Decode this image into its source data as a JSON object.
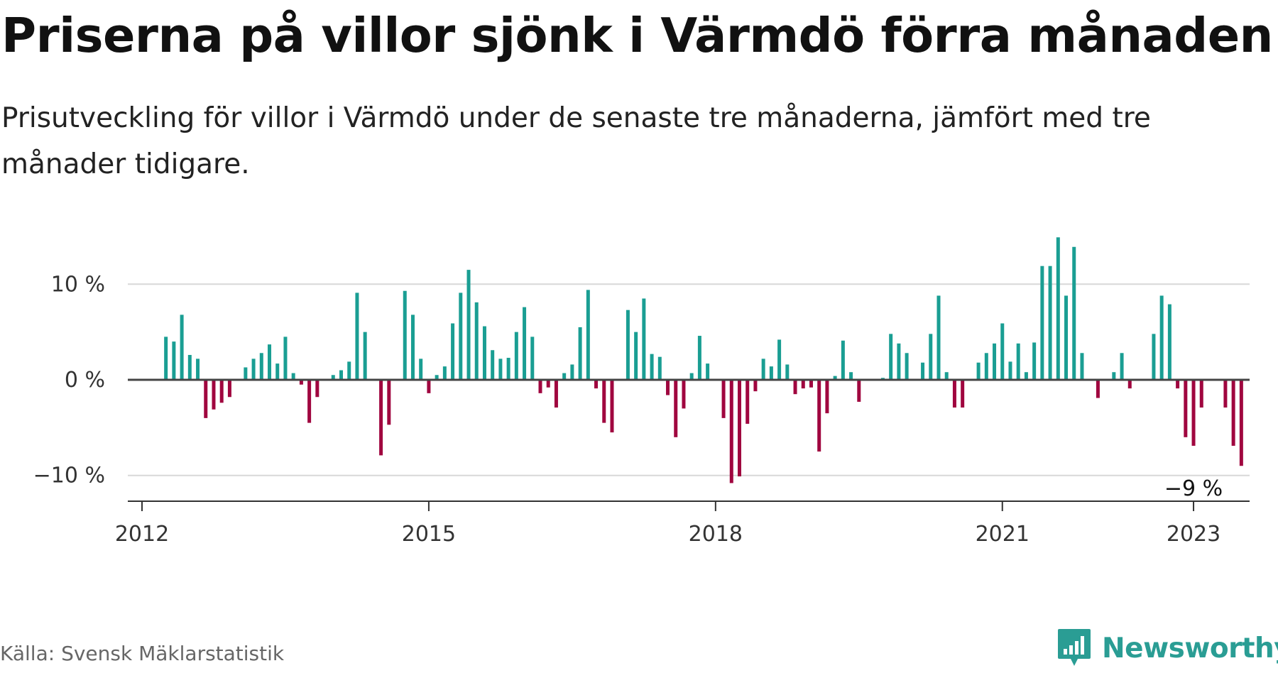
{
  "header": {
    "title": "Priserna på villor sjönk i Värmdö förra månaden",
    "subtitle": "Prisutveckling för villor i Värmdö under de senaste tre månaderna, jämfört med tre månader tidigare."
  },
  "footer": {
    "source": "Källa: Svensk Mäklarstatistik",
    "brand": "Newsworthy",
    "brand_icon": "bar-chart-speech-bubble-icon"
  },
  "colors": {
    "positive": "#1a9e93",
    "negative": "#a0063f",
    "brand": "#2a9d94"
  },
  "chart_data": {
    "type": "bar",
    "title": "Priserna på villor sjönk i Värmdö förra månaden",
    "subtitle": "Prisutveckling för villor i Värmdö under de senaste tre månaderna, jämfört med tre månader tidigare.",
    "x_unit": "month",
    "x_start": "2012-04",
    "ylim": [
      -12.5,
      15.5
    ],
    "y_ticks": [
      {
        "value": 10,
        "label": "10 %"
      },
      {
        "value": 0,
        "label": "0 %"
      },
      {
        "value": -10,
        "label": "−10 %"
      }
    ],
    "x_ticks": [
      {
        "value": "2012-01",
        "label": "2012"
      },
      {
        "value": "2015-01",
        "label": "2015"
      },
      {
        "value": "2018-01",
        "label": "2018"
      },
      {
        "value": "2021-01",
        "label": "2021"
      },
      {
        "value": "2023-01",
        "label": "2023"
      }
    ],
    "grid": true,
    "annotation": {
      "x": "2023-01",
      "value": -9,
      "label": "−9 %"
    },
    "values": [
      4.5,
      4.0,
      6.8,
      2.6,
      2.2,
      -4.0,
      -3.1,
      -2.4,
      -1.8,
      0.0,
      1.3,
      2.2,
      2.8,
      3.7,
      1.7,
      4.5,
      0.7,
      -0.5,
      -4.5,
      -1.8,
      0.0,
      0.5,
      1.0,
      1.9,
      9.1,
      5.0,
      0.0,
      -7.9,
      -4.7,
      0.0,
      9.3,
      6.8,
      2.2,
      -1.4,
      0.5,
      1.4,
      5.9,
      9.1,
      11.5,
      8.1,
      5.6,
      3.1,
      2.2,
      2.3,
      5.0,
      7.6,
      4.5,
      -1.4,
      -0.8,
      -2.9,
      0.7,
      1.6,
      5.5,
      9.4,
      -0.9,
      -4.5,
      -5.5,
      0.0,
      7.3,
      5.0,
      8.5,
      2.7,
      2.4,
      -1.6,
      -6.0,
      -3.0,
      0.7,
      4.6,
      1.7,
      0.0,
      -4.0,
      -10.8,
      -10.1,
      -4.6,
      -1.2,
      2.2,
      1.4,
      4.2,
      1.6,
      -1.5,
      -0.9,
      -0.8,
      -7.5,
      -3.5,
      0.4,
      4.1,
      0.8,
      -2.3,
      0.0,
      0.0,
      0.2,
      4.8,
      3.8,
      2.8,
      0.0,
      1.8,
      4.8,
      8.8,
      0.8,
      -2.9,
      -2.9,
      0.0,
      1.8,
      2.8,
      3.8,
      5.9,
      1.9,
      3.8,
      0.8,
      3.9,
      11.9,
      11.9,
      14.9,
      8.8,
      13.9,
      2.8,
      0.0,
      -1.9,
      0.0,
      0.8,
      2.8,
      -0.9,
      0.0,
      0.0,
      4.8,
      8.8,
      7.9,
      -0.9,
      -6.0,
      -6.9,
      -2.9,
      0.0,
      0.0,
      -2.9,
      -6.9,
      -9.0
    ]
  }
}
